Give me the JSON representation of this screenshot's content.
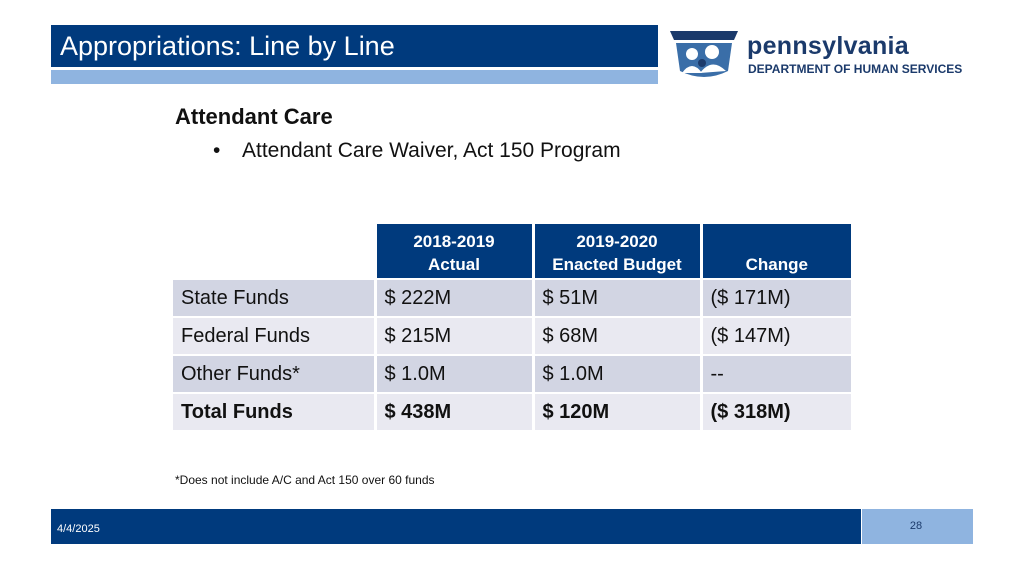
{
  "slide": {
    "title": "Appropriations: Line by Line",
    "heading": "Attendant Care",
    "bullet_symbol": "•",
    "bullet_text": "Attendant Care Waiver, Act 150 Program",
    "footnote": "*Does not include A/C and Act 150 over 60 funds",
    "date": "4/4/2025",
    "page_number": "28"
  },
  "logo": {
    "name": "pennsylvania",
    "department": "DEPARTMENT OF HUMAN SERVICES",
    "colors": {
      "text": "#1b3a6b",
      "icon": "#1b3a6b",
      "icon_light": "#3a6ea8"
    }
  },
  "theme": {
    "primary": "#003a7d",
    "accent_light": "#8fb4e0",
    "row_dark": "#d2d5e3",
    "row_light": "#e9e9f1"
  },
  "table": {
    "columns": [
      {
        "line1": "2018-2019",
        "line2": "Actual"
      },
      {
        "line1": "2019-2020",
        "line2": "Enacted Budget"
      },
      {
        "line1": "",
        "line2": "Change"
      }
    ],
    "rows": [
      {
        "label": "State Funds",
        "actual": "$ 222M",
        "enacted": "$ 51M",
        "change": "($ 171M)"
      },
      {
        "label": "Federal Funds",
        "actual": "$ 215M",
        "enacted": "$ 68M",
        "change": "($ 147M)"
      },
      {
        "label": "Other Funds*",
        "actual": "$ 1.0M",
        "enacted": "$ 1.0M",
        "change": "--"
      },
      {
        "label": "Total Funds",
        "actual": "$ 438M",
        "enacted": "$ 120M",
        "change": "($ 318M)"
      }
    ]
  }
}
